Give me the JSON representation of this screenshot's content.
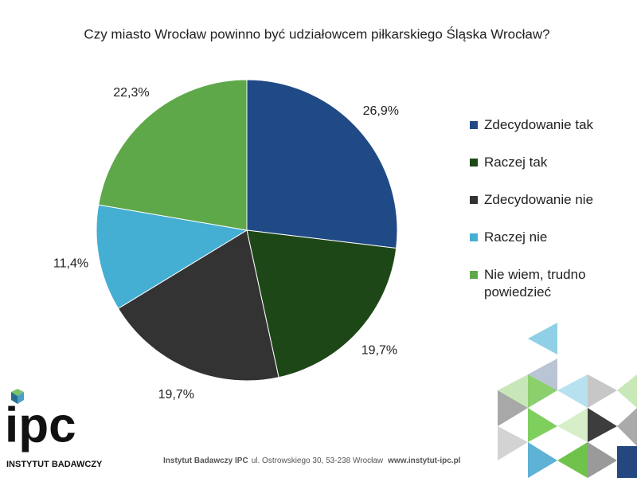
{
  "chart_data": {
    "type": "pie",
    "title": "Czy miasto Wrocław powinno być udziałowcem piłkarskiego Śląska Wrocław?",
    "categories": [
      "Zdecydowanie tak",
      "Raczej tak",
      "Zdecydowanie nie",
      "Raczej nie",
      "Nie wiem, trudno powiedzieć"
    ],
    "values": [
      26.9,
      19.7,
      19.7,
      11.4,
      22.3
    ],
    "value_labels": [
      "26,9%",
      "19,7%",
      "19,7%",
      "11,4%",
      "22,3%"
    ],
    "colors": [
      "#1f4a86",
      "#1e4718",
      "#333333",
      "#45aed3",
      "#5ea84a"
    ],
    "legend": "right"
  },
  "logo": {
    "name": "ipc",
    "subtitle": "INSTYTUT BADAWCZY"
  },
  "footer": {
    "org": "Instytut Badawczy IPC",
    "address": "ul. Ostrowskiego 30, 53-238 Wrocław",
    "website": "www.instytut-ipc.pl"
  }
}
